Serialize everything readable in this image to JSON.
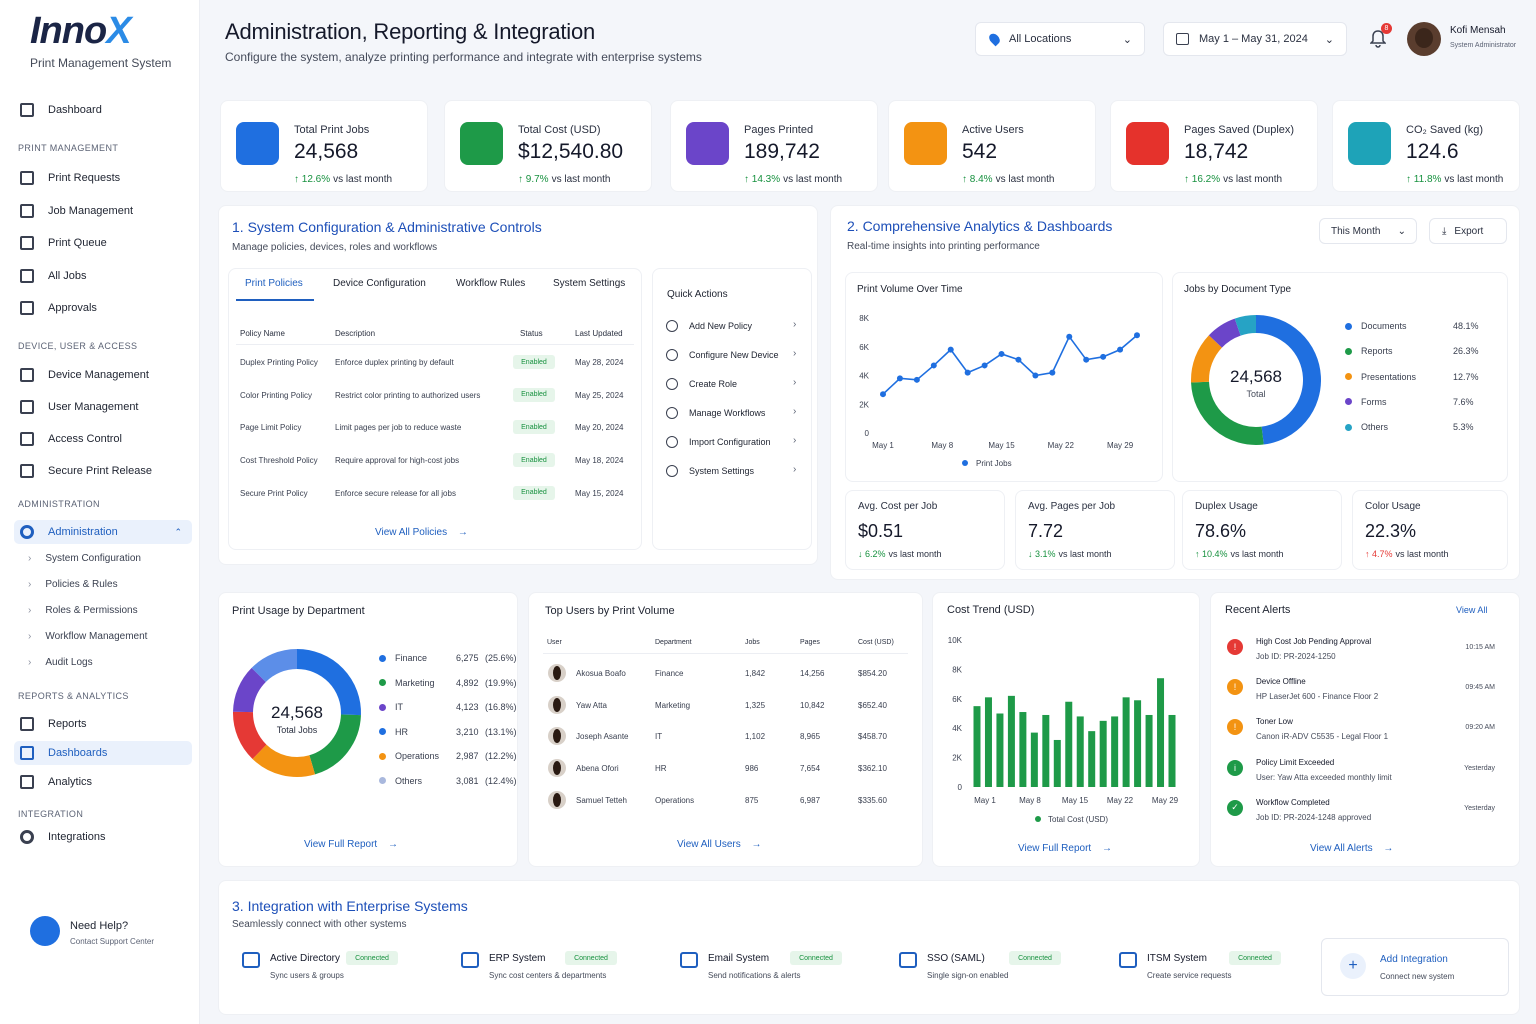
{
  "app": {
    "logo_main": "Inno",
    "logo_x": "X",
    "subtitle": "Print Management System"
  },
  "sidebar": {
    "dashboard": "Dashboard",
    "sec_print": "PRINT MANAGEMENT",
    "print": [
      "Print Requests",
      "Job Management",
      "Print Queue",
      "All Jobs",
      "Approvals"
    ],
    "sec_device": "DEVICE, USER & ACCESS",
    "device": [
      "Device Management",
      "User Management",
      "Access Control",
      "Secure Print Release"
    ],
    "sec_admin": "ADMINISTRATION",
    "admin": "Administration",
    "admin_sub": [
      "System Configuration",
      "Policies & Rules",
      "Roles & Permissions",
      "Workflow Management",
      "Audit Logs"
    ],
    "sec_reports": "REPORTS & ANALYTICS",
    "reports": [
      "Reports",
      "Dashboards",
      "Analytics"
    ],
    "sec_int": "INTEGRATION",
    "integrations": "Integrations",
    "help_title": "Need Help?",
    "help_sub": "Contact Support Center"
  },
  "header": {
    "title": "Administration, Reporting & Integration",
    "subtitle": "Configure the system, analyze printing performance and integrate with enterprise systems",
    "location": "All Locations",
    "date_range": "May 1 – May 31, 2024",
    "notif_count": "8",
    "user_name": "Kofi Mensah",
    "user_role": "System Administrator"
  },
  "kpis": [
    {
      "label": "Total Print Jobs",
      "value": "24,568",
      "delta": "12.6%",
      "suffix": "vs last month",
      "color": "#1f6fe0"
    },
    {
      "label": "Total Cost (USD)",
      "value": "$12,540.80",
      "delta": "9.7%",
      "suffix": "vs last month",
      "color": "#1e9a48"
    },
    {
      "label": "Pages Printed",
      "value": "189,742",
      "delta": "14.3%",
      "suffix": "vs last month",
      "color": "#6b45c9"
    },
    {
      "label": "Active Users",
      "value": "542",
      "delta": "8.4%",
      "suffix": "vs last month",
      "color": "#f39312"
    },
    {
      "label": "Pages Saved (Duplex)",
      "value": "18,742",
      "delta": "16.2%",
      "suffix": "vs last month",
      "color": "#e5322c"
    },
    {
      "label": "CO₂ Saved (kg)",
      "value": "124.6",
      "delta": "11.8%",
      "suffix": "vs last month",
      "color": "#1ea3b8"
    }
  ],
  "config": {
    "title": "1.  System Configuration & Administrative Controls",
    "subtitle": "Manage policies, devices, roles and workflows",
    "tabs": [
      "Print Policies",
      "Device Configuration",
      "Workflow Rules",
      "System Settings"
    ],
    "headers": [
      "Policy Name",
      "Description",
      "Status",
      "Last Updated"
    ],
    "rows": [
      {
        "name": "Duplex Printing Policy",
        "desc": "Enforce duplex printing by default",
        "status": "Enabled",
        "date": "May 28, 2024"
      },
      {
        "name": "Color Printing Policy",
        "desc": "Restrict color printing to authorized users",
        "status": "Enabled",
        "date": "May 25, 2024"
      },
      {
        "name": "Page Limit Policy",
        "desc": "Limit pages per job to reduce waste",
        "status": "Enabled",
        "date": "May 20, 2024"
      },
      {
        "name": "Cost Threshold Policy",
        "desc": "Require approval for high-cost jobs",
        "status": "Enabled",
        "date": "May 18, 2024"
      },
      {
        "name": "Secure Print Policy",
        "desc": "Enforce secure release for all jobs",
        "status": "Enabled",
        "date": "May 15, 2024"
      }
    ],
    "view_all": "View All Policies",
    "quick_title": "Quick Actions",
    "quick": [
      "Add New Policy",
      "Configure New Device",
      "Create Role",
      "Manage Workflows",
      "Import Configuration",
      "System Settings"
    ]
  },
  "analytics": {
    "title": "2.  Comprehensive Analytics & Dashboards",
    "subtitle": "Real-time insights into printing performance",
    "period": "This Month",
    "export": "Export",
    "volume_title": "Print Volume Over Time",
    "doc_title": "Jobs by Document Type",
    "doc_total": "24,568",
    "doc_total_label": "Total",
    "mini": [
      {
        "label": "Avg. Cost per Job",
        "value": "$0.51",
        "delta": "6.2%",
        "dir": "down",
        "color": "#17913f",
        "suffix": "vs last month"
      },
      {
        "label": "Avg. Pages per Job",
        "value": "7.72",
        "delta": "3.1%",
        "dir": "down",
        "color": "#17913f",
        "suffix": "vs last month"
      },
      {
        "label": "Duplex Usage",
        "value": "78.6%",
        "delta": "10.4%",
        "dir": "up",
        "color": "#17913f",
        "suffix": "vs last month"
      },
      {
        "label": "Color Usage",
        "value": "22.3%",
        "delta": "4.7%",
        "dir": "up",
        "color": "#e53935",
        "suffix": "vs last month"
      }
    ]
  },
  "dept": {
    "title": "Print Usage by Department",
    "total": "24,568",
    "total_label": "Total Jobs",
    "link": "View Full Report"
  },
  "top_users": {
    "title": "Top Users by Print Volume",
    "headers": [
      "User",
      "Department",
      "Jobs",
      "Pages",
      "Cost (USD)"
    ],
    "rows": [
      {
        "user": "Akosua Boafo",
        "dept": "Finance",
        "jobs": "1,842",
        "pages": "14,256",
        "cost": "$854.20"
      },
      {
        "user": "Yaw Atta",
        "dept": "Marketing",
        "jobs": "1,325",
        "pages": "10,842",
        "cost": "$652.40"
      },
      {
        "user": "Joseph Asante",
        "dept": "IT",
        "jobs": "1,102",
        "pages": "8,965",
        "cost": "$458.70"
      },
      {
        "user": "Abena Ofori",
        "dept": "HR",
        "jobs": "986",
        "pages": "7,654",
        "cost": "$362.10"
      },
      {
        "user": "Samuel Tetteh",
        "dept": "Operations",
        "jobs": "875",
        "pages": "6,987",
        "cost": "$335.60"
      }
    ],
    "link": "View All Users"
  },
  "cost": {
    "title": "Cost Trend (USD)",
    "link": "View Full Report"
  },
  "alerts": {
    "title": "Recent Alerts",
    "view_all": "View All",
    "link": "View All Alerts",
    "items": [
      {
        "title": "High Cost Job Pending Approval",
        "sub": "Job ID: PR-2024-1250",
        "time": "10:15 AM",
        "color": "#e53935",
        "glyph": "!"
      },
      {
        "title": "Device Offline",
        "sub": "HP LaserJet 600 - Finance Floor 2",
        "time": "09:45 AM",
        "color": "#f39312",
        "glyph": "!"
      },
      {
        "title": "Toner Low",
        "sub": "Canon iR-ADV C5535 - Legal Floor 1",
        "time": "09:20 AM",
        "color": "#f39312",
        "glyph": "!"
      },
      {
        "title": "Policy Limit Exceeded",
        "sub": "User: Yaw Atta exceeded monthly limit",
        "time": "Yesterday",
        "color": "#1e9a48",
        "glyph": "i"
      },
      {
        "title": "Workflow Completed",
        "sub": "Job ID: PR-2024-1248 approved",
        "time": "Yesterday",
        "color": "#1e9a48",
        "glyph": "✓"
      }
    ]
  },
  "integration": {
    "title": "3.  Integration with Enterprise Systems",
    "subtitle": "Seamlessly connect with other systems",
    "items": [
      {
        "name": "Active Directory",
        "sub": "Sync users & groups",
        "status": "Connected"
      },
      {
        "name": "ERP System",
        "sub": "Sync cost centers & departments",
        "status": "Connected"
      },
      {
        "name": "Email System",
        "sub": "Send notifications & alerts",
        "status": "Connected"
      },
      {
        "name": "SSO (SAML)",
        "sub": "Single sign-on enabled",
        "status": "Connected"
      },
      {
        "name": "ITSM System",
        "sub": "Create service requests",
        "status": "Connected"
      }
    ],
    "add_title": "Add Integration",
    "add_sub": "Connect new system"
  },
  "chart_data": [
    {
      "type": "line",
      "title": "Print Volume Over Time",
      "x": [
        "May 1",
        "May 3",
        "May 5",
        "May 7",
        "May 9",
        "May 11",
        "May 13",
        "May 15",
        "May 17",
        "May 19",
        "May 21",
        "May 23",
        "May 25",
        "May 27",
        "May 29",
        "May 31"
      ],
      "xticks": [
        "May 1",
        "May 8",
        "May 15",
        "May 22",
        "May 29"
      ],
      "yticks": [
        "0",
        "2K",
        "4K",
        "6K",
        "8K"
      ],
      "ylim": [
        0,
        8000
      ],
      "series": [
        {
          "name": "Print Jobs",
          "values": [
            2700,
            3800,
            3700,
            4700,
            5800,
            4200,
            4700,
            5500,
            5100,
            4000,
            4200,
            6700,
            5100,
            5300,
            5800,
            6800
          ]
        }
      ],
      "color": "#1f6fe0"
    },
    {
      "type": "pie",
      "title": "Jobs by Document Type",
      "categories": [
        "Documents",
        "Reports",
        "Presentations",
        "Forms",
        "Others"
      ],
      "values": [
        48.1,
        26.3,
        12.7,
        7.6,
        5.3
      ],
      "labels": [
        "48.1%",
        "26.3%",
        "12.7%",
        "7.6%",
        "5.3%"
      ],
      "colors": [
        "#1f6fe0",
        "#1e9a48",
        "#f39312",
        "#6b45c9",
        "#26a3c5"
      ]
    },
    {
      "type": "pie",
      "title": "Print Usage by Department",
      "categories": [
        "Finance",
        "Marketing",
        "IT",
        "HR",
        "Operations",
        "Others"
      ],
      "values": [
        6275,
        4892,
        4123,
        3210,
        2987,
        3081
      ],
      "percent": [
        "(25.6%)",
        "(19.9%)",
        "(16.8%)",
        "(13.1%)",
        "(12.2%)",
        "(12.4%)"
      ],
      "valuelabels": [
        "6,275",
        "4,892",
        "4,123",
        "3,210",
        "2,987",
        "3,081"
      ],
      "colors": [
        "#1f6fe0",
        "#1e9a48",
        "#6b45c9",
        "#1f6fe0",
        "#f39312",
        "#a9b8dd"
      ],
      "ring_colors": [
        "#1f6fe0",
        "#1e9a48",
        "#f39312",
        "#e53935",
        "#6b45c9",
        "#5c8ee8"
      ]
    },
    {
      "type": "bar",
      "title": "Cost Trend (USD)",
      "xticks": [
        "May 1",
        "May 8",
        "May 15",
        "May 22",
        "May 29"
      ],
      "yticks": [
        "0",
        "2K",
        "4K",
        "6K",
        "8K",
        "10K"
      ],
      "ylim": [
        0,
        10000
      ],
      "series": [
        {
          "name": "Total Cost (USD)",
          "values": [
            5500,
            6100,
            5000,
            6200,
            5100,
            3700,
            4900,
            3200,
            5800,
            4800,
            3800,
            4500,
            4800,
            6100,
            5900,
            4900,
            7400,
            4900
          ]
        }
      ],
      "color": "#1e9a48"
    }
  ]
}
